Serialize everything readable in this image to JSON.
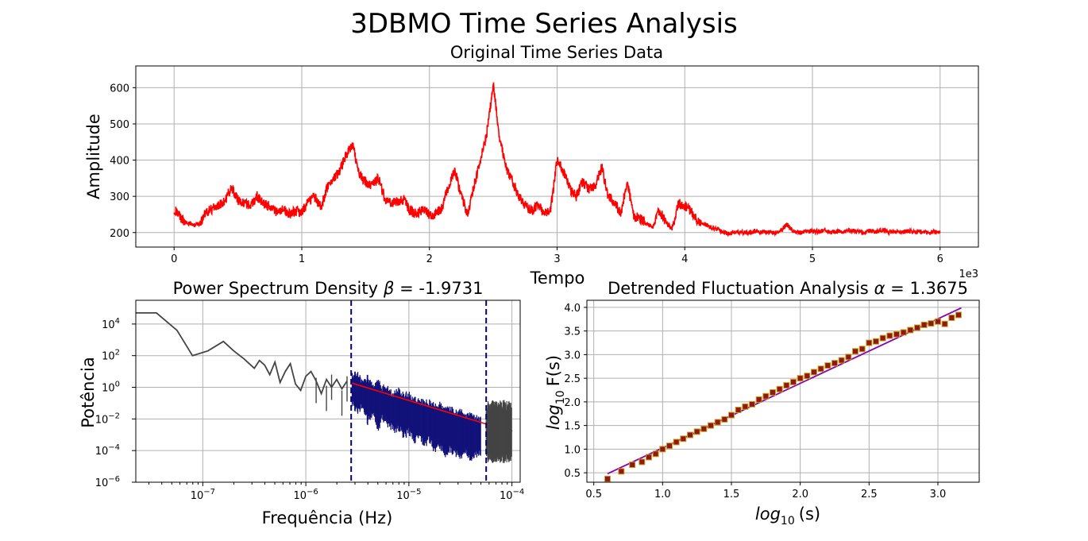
{
  "figure": {
    "title": "3DBMO Time Series Analysis"
  },
  "chart_data": [
    {
      "id": "ts",
      "type": "line",
      "title": "Original Time Series Data",
      "xlabel": "Tempo",
      "ylabel": "Amplitude",
      "x_offset_text": "1e3",
      "xlim": [
        -0.3,
        6.3
      ],
      "ylim": [
        160,
        660
      ],
      "xticks": [
        0,
        1,
        2,
        3,
        4,
        5,
        6
      ],
      "xtick_labels": [
        "0",
        "1",
        "2",
        "3",
        "4",
        "5",
        "6"
      ],
      "yticks": [
        200,
        300,
        400,
        500,
        600
      ],
      "ytick_labels": [
        "200",
        "300",
        "400",
        "500",
        "600"
      ],
      "grid": true,
      "color": "#ff0000",
      "x": [
        0,
        0.05,
        0.1,
        0.15,
        0.2,
        0.25,
        0.3,
        0.35,
        0.4,
        0.45,
        0.5,
        0.55,
        0.6,
        0.65,
        0.7,
        0.75,
        0.8,
        0.85,
        0.9,
        0.95,
        1.0,
        1.05,
        1.1,
        1.15,
        1.2,
        1.25,
        1.3,
        1.35,
        1.4,
        1.45,
        1.5,
        1.55,
        1.6,
        1.65,
        1.7,
        1.75,
        1.8,
        1.85,
        1.9,
        1.95,
        2.0,
        2.05,
        2.1,
        2.15,
        2.2,
        2.25,
        2.3,
        2.35,
        2.4,
        2.45,
        2.5,
        2.55,
        2.6,
        2.65,
        2.7,
        2.75,
        2.8,
        2.85,
        2.9,
        2.95,
        3.0,
        3.05,
        3.1,
        3.15,
        3.2,
        3.25,
        3.3,
        3.35,
        3.4,
        3.45,
        3.5,
        3.55,
        3.6,
        3.65,
        3.7,
        3.75,
        3.8,
        3.85,
        3.9,
        3.95,
        4.0,
        4.05,
        4.1,
        4.15,
        4.2,
        4.25,
        4.3,
        4.35,
        4.4,
        4.45,
        4.5,
        4.55,
        4.6,
        4.65,
        4.7,
        4.75,
        4.8,
        4.85,
        4.9,
        4.95,
        5.0,
        5.05,
        5.1,
        5.15,
        5.2,
        5.25,
        5.3,
        5.35,
        5.4,
        5.45,
        5.5,
        5.55,
        5.6,
        5.65,
        5.7,
        5.75,
        5.8,
        5.85,
        5.9,
        5.95,
        6.0
      ],
      "y": [
        265,
        240,
        228,
        220,
        225,
        255,
        265,
        275,
        290,
        325,
        290,
        280,
        275,
        300,
        280,
        270,
        255,
        265,
        250,
        260,
        255,
        285,
        300,
        270,
        325,
        350,
        370,
        420,
        440,
        360,
        340,
        330,
        350,
        295,
        280,
        285,
        290,
        260,
        250,
        265,
        250,
        250,
        270,
        330,
        370,
        300,
        250,
        330,
        400,
        475,
        610,
        460,
        380,
        340,
        300,
        275,
        260,
        275,
        255,
        265,
        400,
        370,
        320,
        300,
        340,
        320,
        330,
        380,
        300,
        280,
        255,
        340,
        245,
        240,
        225,
        215,
        260,
        230,
        210,
        280,
        275,
        260,
        235,
        225,
        215,
        210,
        200,
        198,
        200,
        201,
        199,
        203,
        200,
        202,
        199,
        205,
        222,
        205,
        200,
        202,
        205,
        202,
        208,
        200,
        204,
        201,
        206,
        203,
        200,
        205,
        202,
        208,
        201,
        203,
        200,
        204,
        201,
        203,
        200,
        202,
        200
      ]
    },
    {
      "id": "psd",
      "type": "line",
      "title": "Power Spectrum Density",
      "title_greek": "β",
      "title_value": " = -1.9731",
      "xlabel": "Frequência (Hz)",
      "ylabel": "Potência",
      "xscale": "log",
      "yscale": "log",
      "xlim_log10": [
        -7.65,
        -3.92
      ],
      "ylim_log10": [
        -6,
        5.5
      ],
      "xticks_log10": [
        -7,
        -6,
        -5,
        -4
      ],
      "yticks_log10": [
        -6,
        -4,
        -2,
        0,
        2,
        4
      ],
      "tick_base": "10",
      "grid": true,
      "fit_range_log10": [
        -5.56,
        -4.25
      ],
      "fit_line_log10": {
        "x": [
          -5.56,
          -4.25
        ],
        "y": [
          0.28,
          -2.32
        ]
      },
      "colors": {
        "spectrum": "#444444",
        "fit_region": "#12127a",
        "fit_line": "#ff0000",
        "vlines": "#000080"
      },
      "series": [
        {
          "x": [
            -7.65,
            -7.45,
            -7.25,
            -7.1,
            -6.95,
            -6.8,
            -6.7,
            -6.6,
            -6.5,
            -6.45,
            -6.4,
            -6.35,
            -6.3,
            -6.25,
            -6.2,
            -6.15,
            -6.1,
            -6.05,
            -6.0,
            -5.95,
            -5.9,
            -5.85,
            -5.8,
            -5.75,
            -5.7,
            -5.65,
            -5.6
          ],
          "y": [
            4.7,
            4.7,
            3.6,
            2.0,
            2.3,
            2.9,
            2.3,
            1.8,
            1.2,
            1.7,
            1.4,
            0.8,
            1.6,
            0.3,
            1.0,
            1.5,
            0.2,
            -0.2,
            0.7,
            1.0,
            0.4,
            -0.4,
            0.5,
            0.0,
            0.5,
            -0.1,
            0.4
          ]
        },
        {
          "x": [
            -4.25,
            -4.2,
            -4.15,
            -4.1,
            -4.05,
            -4.0
          ],
          "y": [
            -2.2,
            -2.6,
            -1.8,
            -2.4,
            -2.0,
            -2.8
          ]
        }
      ],
      "spectrum_peaks": {
        "x": [
          -5.9,
          -5.8,
          -5.75,
          -5.65,
          -5.6,
          -4.2,
          -4.1
        ],
        "y": [
          -1.0,
          -1.5,
          -0.8,
          -1.8,
          -0.9,
          -3.8,
          -3.5
        ]
      },
      "fit_region_data": {
        "x": [
          -5.55,
          -5.5,
          -5.45,
          -5.4,
          -5.35,
          -5.3,
          -5.25,
          -5.2,
          -5.15,
          -5.1,
          -5.05,
          -5.0,
          -4.95,
          -4.9,
          -4.85,
          -4.8,
          -4.75,
          -4.7,
          -4.65,
          -4.6,
          -4.55,
          -4.5,
          -4.45,
          -4.4,
          -4.35,
          -4.3
        ],
        "hi": [
          0.9,
          1.1,
          0.6,
          0.8,
          0.3,
          0.5,
          0.2,
          0.1,
          -0.2,
          0.0,
          -0.3,
          -0.2,
          -0.6,
          -0.5,
          -0.8,
          -0.7,
          -1.0,
          -0.9,
          -1.2,
          -1.1,
          -1.4,
          -1.3,
          -1.6,
          -1.5,
          -1.7,
          -1.8
        ],
        "lo": [
          -1.2,
          -1.8,
          -1.5,
          -2.4,
          -1.9,
          -2.8,
          -2.2,
          -2.6,
          -3.0,
          -2.8,
          -3.3,
          -3.1,
          -3.6,
          -3.4,
          -3.8,
          -3.6,
          -4.2,
          -3.9,
          -4.5,
          -4.2,
          -4.4,
          -4.6,
          -4.3,
          -4.8,
          -4.5,
          -4.4
        ]
      }
    },
    {
      "id": "dfa",
      "type": "scatter",
      "title": "Detrended Fluctuation Analysis",
      "title_greek": "α",
      "title_value": " = 1.3675",
      "xlabel": "log10 (s)",
      "ylabel": "log10 F(s)",
      "xlim": [
        0.45,
        3.3
      ],
      "ylim": [
        0.3,
        4.15
      ],
      "xticks": [
        0.5,
        1.0,
        1.5,
        2.0,
        2.5,
        3.0
      ],
      "xtick_labels": [
        "0.5",
        "1.0",
        "1.5",
        "2.0",
        "2.5",
        "3.0"
      ],
      "yticks": [
        0.5,
        1.0,
        1.5,
        2.0,
        2.5,
        3.0,
        3.5,
        4.0
      ],
      "ytick_labels": [
        "0.5",
        "1.0",
        "1.5",
        "2.0",
        "2.5",
        "3.0",
        "3.5",
        "4.0"
      ],
      "grid": true,
      "colors": {
        "marker_fill": "#8b1a1a",
        "marker_edge": "#d4a017",
        "fit_line": "#8a00b0"
      },
      "fit_line": {
        "x": [
          0.6,
          3.17
        ],
        "y": [
          0.48,
          3.99
        ]
      },
      "x": [
        0.6,
        0.7,
        0.78,
        0.85,
        0.9,
        0.95,
        1.0,
        1.05,
        1.1,
        1.15,
        1.2,
        1.25,
        1.3,
        1.35,
        1.4,
        1.45,
        1.5,
        1.55,
        1.6,
        1.65,
        1.7,
        1.75,
        1.8,
        1.85,
        1.9,
        1.95,
        2.0,
        2.05,
        2.1,
        2.15,
        2.2,
        2.25,
        2.3,
        2.35,
        2.4,
        2.45,
        2.5,
        2.55,
        2.6,
        2.65,
        2.7,
        2.75,
        2.8,
        2.85,
        2.9,
        2.95,
        3.0,
        3.05,
        3.1,
        3.15
      ],
      "y": [
        0.37,
        0.53,
        0.67,
        0.73,
        0.83,
        0.9,
        1.0,
        1.07,
        1.15,
        1.22,
        1.3,
        1.37,
        1.43,
        1.5,
        1.57,
        1.63,
        1.72,
        1.83,
        1.9,
        1.95,
        2.05,
        2.12,
        2.2,
        2.27,
        2.35,
        2.42,
        2.5,
        2.55,
        2.63,
        2.7,
        2.77,
        2.82,
        2.88,
        2.95,
        3.07,
        3.12,
        3.25,
        3.28,
        3.35,
        3.4,
        3.43,
        3.47,
        3.52,
        3.57,
        3.63,
        3.66,
        3.7,
        3.65,
        3.78,
        3.84
      ]
    }
  ]
}
